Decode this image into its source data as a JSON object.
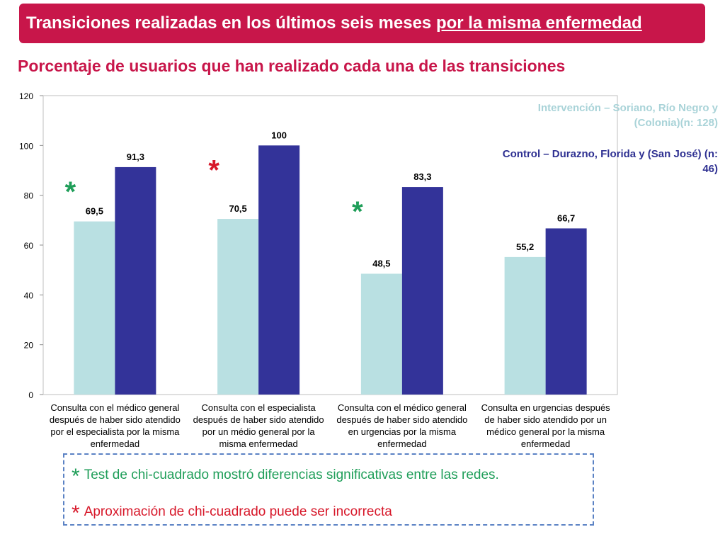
{
  "header": {
    "title_main": "Transiciones realizadas en los últimos seis meses ",
    "title_underlined": "por la misma enfermedad"
  },
  "subtitle": "Porcentaje de usuarios que han realizado cada una de las transiciones",
  "legend": {
    "intervention": "Intervención – Soriano, Río Negro y (Colonia)(n: 128)",
    "control": "Control – Durazno, Florida y (San José) (n: 46)"
  },
  "chart_data": {
    "type": "bar",
    "categories": [
      [
        "Consulta con el médico general",
        "después de haber sido atendido",
        "por el especialista por la misma",
        "enfermedad"
      ],
      [
        "Consulta con el especialista",
        "después de haber sido atendido",
        "por un médio general por la",
        "misma enfermedad"
      ],
      [
        "Consulta con el médico general",
        "después de haber sido atendido",
        "en urgencias por la misma",
        "enfermedad"
      ],
      [
        "Consulta en urgencias después",
        "de haber sido atendido por un",
        "médico general por la misma",
        "enfermedad"
      ]
    ],
    "series": [
      {
        "name": "Intervención – Soriano, Río Negro y (Colonia)(n: 128)",
        "values": [
          69.5,
          70.5,
          48.5,
          55.2
        ],
        "labels": [
          "69,5",
          "70,5",
          "48,5",
          "55,2"
        ],
        "color": "#b9e0e2"
      },
      {
        "name": "Control – Durazno, Florida y (San José) (n: 46)",
        "values": [
          91.3,
          100,
          83.3,
          66.7
        ],
        "labels": [
          "91,3",
          "100",
          "83,3",
          "66,7"
        ],
        "color": "#333399"
      }
    ],
    "ylim": [
      0,
      120
    ],
    "yticks": [
      0,
      20,
      40,
      60,
      80,
      100,
      120
    ],
    "grid": false,
    "legend_position": "top-right",
    "significance_markers": [
      {
        "category": 0,
        "symbol": "*",
        "color": "#1f9e59"
      },
      {
        "category": 1,
        "symbol": "*",
        "color": "#d7182a"
      },
      {
        "category": 2,
        "symbol": "*",
        "color": "#1f9e59"
      }
    ]
  },
  "notes": {
    "star": "*",
    "note1": "Test de chi-cuadrado mostró diferencias significativas entre las redes.",
    "note2": "Aproximación de chi-cuadrado puede ser incorrecta"
  },
  "colors": {
    "accent": "#c8164a",
    "significant": "#1f9e59",
    "warning": "#d7182a",
    "border": "#5b82c4"
  }
}
